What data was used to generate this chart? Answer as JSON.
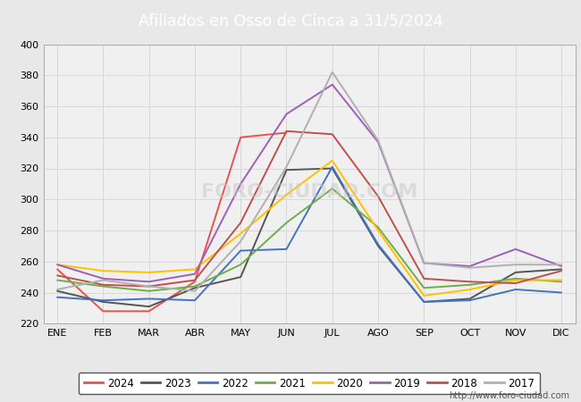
{
  "title": "Afiliados en Osso de Cinca a 31/5/2024",
  "header_bg": "#5b9bd5",
  "ylim": [
    220,
    400
  ],
  "yticks": [
    220,
    240,
    260,
    280,
    300,
    320,
    340,
    360,
    380,
    400
  ],
  "months": [
    "ENE",
    "FEB",
    "MAR",
    "ABR",
    "MAY",
    "JUN",
    "JUL",
    "AGO",
    "SEP",
    "OCT",
    "NOV",
    "DIC"
  ],
  "series": {
    "2024": {
      "color": "#e8534a",
      "data": [
        255,
        228,
        228,
        247,
        340,
        343,
        null,
        null,
        null,
        null,
        null,
        null
      ]
    },
    "2023": {
      "color": "#555555",
      "data": [
        241,
        234,
        231,
        243,
        250,
        319,
        320,
        270,
        234,
        236,
        253,
        255
      ]
    },
    "2022": {
      "color": "#4472c4",
      "data": [
        237,
        235,
        236,
        235,
        267,
        268,
        321,
        271,
        234,
        235,
        242,
        240
      ]
    },
    "2021": {
      "color": "#70ad47",
      "data": [
        248,
        244,
        241,
        244,
        258,
        285,
        307,
        282,
        243,
        245,
        249,
        247
      ]
    },
    "2020": {
      "color": "#ffc000",
      "data": [
        258,
        254,
        253,
        255,
        278,
        303,
        325,
        280,
        238,
        242,
        248,
        248
      ]
    },
    "2019": {
      "color": "#9e60b5",
      "data": [
        258,
        249,
        247,
        252,
        310,
        355,
        374,
        337,
        259,
        257,
        268,
        257
      ]
    },
    "2018": {
      "color": "#c0504d",
      "data": [
        251,
        245,
        244,
        248,
        285,
        344,
        342,
        302,
        249,
        247,
        246,
        254
      ]
    },
    "2017": {
      "color": "#b0b0b0",
      "data": [
        242,
        248,
        244,
        241,
        273,
        321,
        382,
        338,
        259,
        256,
        258,
        258
      ]
    }
  },
  "legend_order": [
    "2024",
    "2023",
    "2022",
    "2021",
    "2020",
    "2019",
    "2018",
    "2017"
  ],
  "footer_text": "http://www.foro-ciudad.com",
  "outer_bg": "#e8e8e8",
  "plot_bg_color": "#f0f0f0",
  "grid_color": "#d8d8d8"
}
